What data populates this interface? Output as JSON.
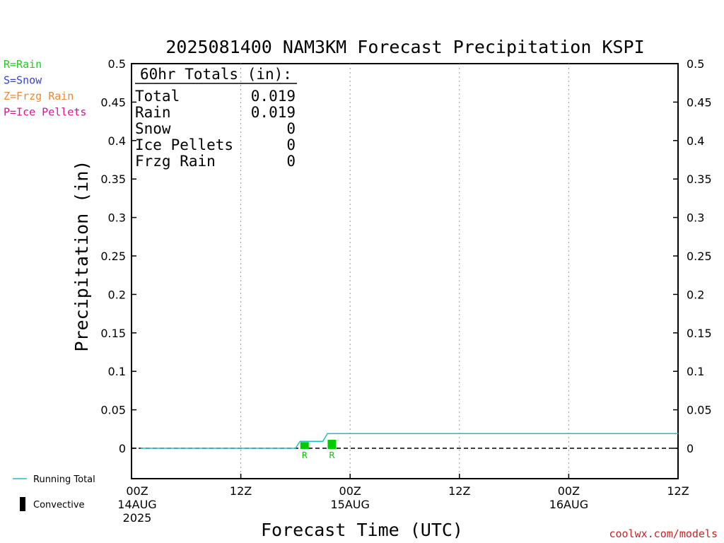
{
  "chart_data": {
    "type": "line",
    "title": "2025081400 NAM3KM Forecast Precipitation KSPI",
    "xlabel": "Forecast Time (UTC)",
    "ylabel": "Precipitation (in)",
    "ylim": [
      0,
      0.5
    ],
    "y_ticks": [
      "0",
      "0.05",
      "0.1",
      "0.15",
      "0.2",
      "0.25",
      "0.3",
      "0.35",
      "0.4",
      "0.45",
      "0.5"
    ],
    "x_ticks": [
      {
        "label": "00Z",
        "sub": [
          "14AUG",
          "2025"
        ]
      },
      {
        "label": "12Z",
        "sub": []
      },
      {
        "label": "00Z",
        "sub": [
          "15AUG"
        ]
      },
      {
        "label": "12Z",
        "sub": []
      },
      {
        "label": "00Z",
        "sub": [
          "16AUG"
        ]
      },
      {
        "label": "12Z",
        "sub": []
      }
    ],
    "series": [
      {
        "name": "Running Total",
        "color": "#20c0c0",
        "x_hours": [
          1,
          18,
          18.5,
          20,
          21,
          21.5,
          60
        ],
        "values": [
          0,
          0,
          0.009,
          0.009,
          0.009,
          0.019,
          0.019
        ]
      }
    ],
    "precip_bars": [
      {
        "hour": 19,
        "value": 0.008,
        "type_label": "R",
        "color": "#00cc00"
      },
      {
        "hour": 22,
        "value": 0.011,
        "type_label": "R",
        "color": "#00cc00"
      }
    ],
    "totals_box": {
      "header": "60hr Totals (in):",
      "rows": [
        {
          "label": "Total",
          "value": "0.019"
        },
        {
          "label": "Rain",
          "value": "0.019"
        },
        {
          "label": "Snow",
          "value": "0"
        },
        {
          "label": "Ice Pellets",
          "value": "0"
        },
        {
          "label": "Frzg Rain",
          "value": "0"
        }
      ]
    },
    "type_legend": [
      {
        "text": "R=Rain",
        "color": "#22cc22"
      },
      {
        "text": "S=Snow",
        "color": "#3344dd"
      },
      {
        "text": "Z=Frzg Rain",
        "color": "#ee8833"
      },
      {
        "text": "P=Ice Pellets",
        "color": "#dd1199"
      }
    ],
    "bottom_legend": [
      {
        "text": "Running Total",
        "color": "#20c0c0",
        "kind": "line"
      },
      {
        "text": "Convective",
        "color": "#000000",
        "kind": "bar"
      }
    ],
    "credit": "coolwx.com/models",
    "credit_color": "#cc2222",
    "grid": "vertical-dotted"
  }
}
